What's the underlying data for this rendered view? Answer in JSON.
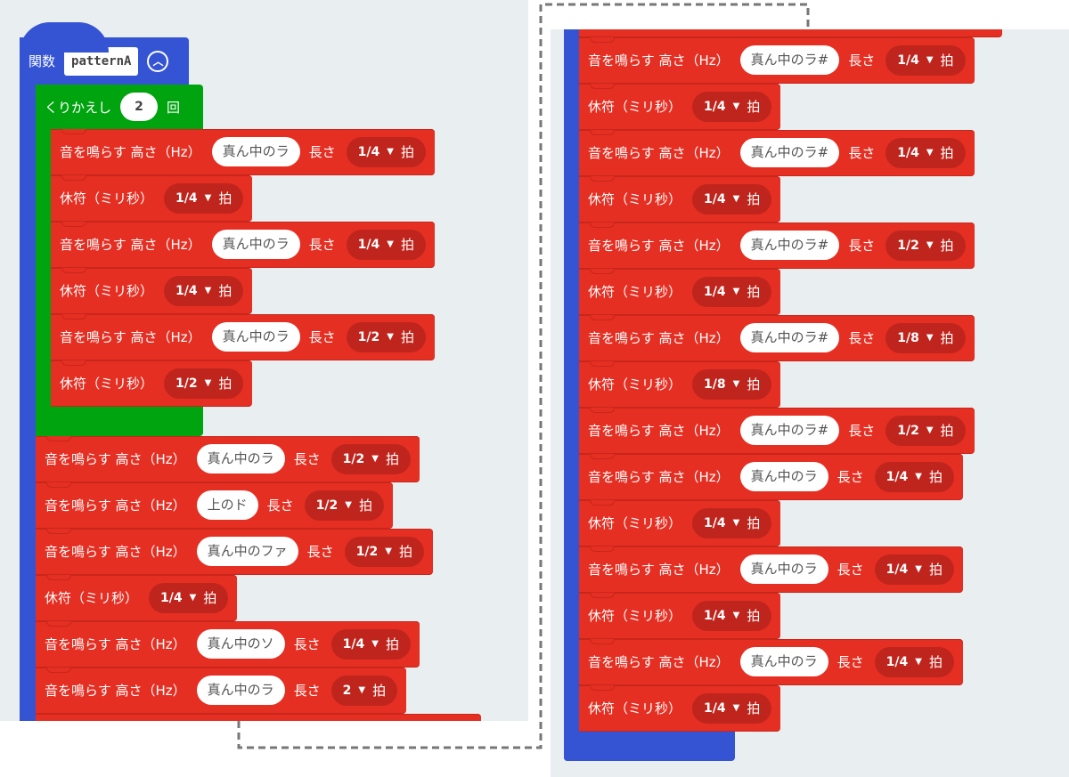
{
  "colors": {
    "function": "#3454d4",
    "loop": "#00a40f",
    "music": "#e52f23",
    "music_dark": "#c0251d",
    "workspace": "#e9eef0"
  },
  "function_block": {
    "keyword": "関数",
    "name": "patternA",
    "collapse_icon": "chevron-up-circle-icon"
  },
  "repeat_block": {
    "label": "くりかえし",
    "count": "2",
    "suffix": "回"
  },
  "labels": {
    "play": "音を鳴らす 高さ（Hz）",
    "length": "長さ",
    "rest": "休符（ミリ秒）",
    "beat": "拍",
    "caret": "▼"
  },
  "left_loop_blocks": [
    {
      "type": "play",
      "note": "真ん中のラ",
      "beats": "1/4"
    },
    {
      "type": "rest",
      "beats": "1/4"
    },
    {
      "type": "play",
      "note": "真ん中のラ",
      "beats": "1/4"
    },
    {
      "type": "rest",
      "beats": "1/4"
    },
    {
      "type": "play",
      "note": "真ん中のラ",
      "beats": "1/2"
    },
    {
      "type": "rest",
      "beats": "1/2"
    }
  ],
  "left_blocks": [
    {
      "type": "play",
      "note": "真ん中のラ",
      "beats": "1/2"
    },
    {
      "type": "play",
      "note": "上のド",
      "beats": "1/2"
    },
    {
      "type": "play",
      "note": "真ん中のファ",
      "beats": "1/2"
    },
    {
      "type": "rest",
      "beats": "1/4"
    },
    {
      "type": "play",
      "note": "真ん中のソ",
      "beats": "1/4"
    },
    {
      "type": "play",
      "note": "真ん中のラ",
      "beats": "2"
    }
  ],
  "right_blocks": [
    {
      "type": "play",
      "note": "真ん中のラ#",
      "beats": "1/4"
    },
    {
      "type": "rest",
      "beats": "1/4"
    },
    {
      "type": "play",
      "note": "真ん中のラ#",
      "beats": "1/4"
    },
    {
      "type": "rest",
      "beats": "1/4"
    },
    {
      "type": "play",
      "note": "真ん中のラ#",
      "beats": "1/2"
    },
    {
      "type": "rest",
      "beats": "1/4"
    },
    {
      "type": "play",
      "note": "真ん中のラ#",
      "beats": "1/8"
    },
    {
      "type": "rest",
      "beats": "1/8"
    },
    {
      "type": "play",
      "note": "真ん中のラ#",
      "beats": "1/2"
    },
    {
      "type": "play",
      "note": "真ん中のラ",
      "beats": "1/4"
    },
    {
      "type": "rest",
      "beats": "1/4"
    },
    {
      "type": "play",
      "note": "真ん中のラ",
      "beats": "1/4"
    },
    {
      "type": "rest",
      "beats": "1/4"
    },
    {
      "type": "play",
      "note": "真ん中のラ",
      "beats": "1/4"
    },
    {
      "type": "rest",
      "beats": "1/4"
    }
  ]
}
